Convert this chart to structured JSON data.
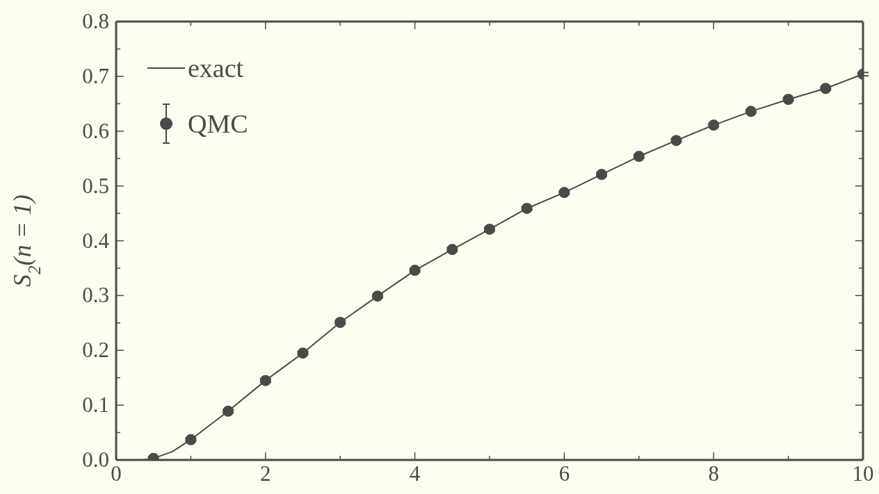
{
  "chart_data": {
    "type": "line",
    "ylabel": "S$_{2}$(n = 1)",
    "xlim": [
      0,
      10
    ],
    "ylim": [
      0,
      0.8
    ],
    "xticks": [
      0,
      {
        "value": 1,
        "label": null
      },
      2,
      {
        "value": 3,
        "label": null
      },
      4,
      {
        "value": 5,
        "label": null
      },
      6,
      {
        "value": 7,
        "label": null
      },
      8,
      {
        "value": 9,
        "label": null
      },
      10
    ],
    "yticks": [
      {
        "value": 0,
        "label": "0.0"
      },
      {
        "value": 0.05,
        "label": null
      },
      {
        "value": 0.1,
        "label": "0.1"
      },
      {
        "value": 0.15,
        "label": null
      },
      {
        "value": 0.2,
        "label": "0.2"
      },
      {
        "value": 0.25,
        "label": null
      },
      {
        "value": 0.3,
        "label": "0.3"
      },
      {
        "value": 0.35,
        "label": null
      },
      {
        "value": 0.4,
        "label": "0.4"
      },
      {
        "value": 0.45,
        "label": null
      },
      {
        "value": 0.5,
        "label": "0.5"
      },
      {
        "value": 0.55,
        "label": null
      },
      {
        "value": 0.6,
        "label": "0.6"
      },
      {
        "value": 0.65,
        "label": null
      },
      {
        "value": 0.7,
        "label": "0.7"
      },
      {
        "value": 0.75,
        "label": null
      },
      {
        "value": 0.8,
        "label": "0.8"
      }
    ],
    "legend": "top left",
    "series": [
      {
        "name": "exact",
        "marker": "none",
        "line_style": "solid",
        "color": "#4a4a4a",
        "x": [
          0.35,
          0.5,
          0.75,
          1,
          1.5,
          2,
          2.5,
          3,
          3.5,
          4,
          4.5,
          5,
          5.5,
          6,
          6.5,
          7,
          7.5,
          8,
          8.5,
          9,
          9.5,
          10
        ],
        "values": [
          0,
          0.003,
          0.015,
          0.037,
          0.089,
          0.145,
          0.195,
          0.251,
          0.299,
          0.346,
          0.384,
          0.421,
          0.459,
          0.488,
          0.521,
          0.554,
          0.583,
          0.611,
          0.636,
          0.658,
          0.678,
          0.704
        ]
      },
      {
        "name": "QMC",
        "type": "scatter",
        "marker": "circle",
        "color": "#4a4a4a",
        "x": [
          0.5,
          1,
          1.5,
          2,
          2.5,
          3,
          3.5,
          4,
          4.5,
          5,
          5.5,
          6,
          6.5,
          7,
          7.5,
          8,
          8.5,
          9,
          9.5,
          10
        ],
        "values": [
          0.003,
          0.037,
          0.089,
          0.145,
          0.195,
          0.251,
          0.299,
          0.346,
          0.384,
          0.421,
          0.459,
          0.488,
          0.521,
          0.554,
          0.583,
          0.611,
          0.636,
          0.658,
          0.678,
          0.704
        ],
        "errors": [
          0.003,
          0.003,
          0.003,
          0.003,
          0.003,
          0.003,
          0.003,
          0.003,
          0.003,
          0.003,
          0.003,
          0.003,
          0.003,
          0.003,
          0.003,
          0.003,
          0.003,
          0.003,
          0.003,
          0.003
        ]
      }
    ]
  }
}
